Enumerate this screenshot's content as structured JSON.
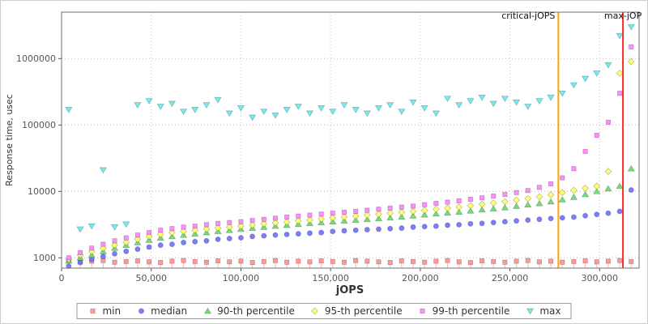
{
  "chart_data": {
    "type": "scatter",
    "title": "",
    "xlabel": "jOPS",
    "ylabel": "Response time, usec",
    "legend_position": "bottom",
    "grid": true,
    "x_axis": {
      "min": 0,
      "max": 322000,
      "ticks": [
        0,
        50000,
        100000,
        150000,
        200000,
        250000,
        300000
      ],
      "tick_labels": [
        "0",
        "50,000",
        "100,000",
        "150,000",
        "200,000",
        "250,000",
        "300,000"
      ]
    },
    "y_axis": {
      "scale": "log",
      "min": 700,
      "max": 5000000,
      "ticks": [
        1000,
        10000,
        100000,
        1000000
      ],
      "tick_labels": [
        "1000",
        "10000",
        "100000",
        "1000000"
      ]
    },
    "x": [
      4000,
      10400,
      16800,
      23200,
      29600,
      36000,
      42400,
      48800,
      55200,
      61600,
      68000,
      74400,
      80800,
      87200,
      93600,
      100000,
      106400,
      112800,
      119200,
      125600,
      132000,
      138400,
      144800,
      151200,
      157600,
      164000,
      170400,
      176800,
      183200,
      189600,
      196000,
      202400,
      208800,
      215200,
      221600,
      228000,
      234400,
      240800,
      247200,
      253600,
      260000,
      266400,
      272800,
      279200,
      285600,
      292000,
      298400,
      304800,
      311200,
      317600
    ],
    "series": [
      {
        "name": "min",
        "marker": "square",
        "color": "#ff8a8a",
        "values": [
          900,
          870,
          890,
          910,
          860,
          880,
          900,
          870,
          850,
          890,
          910,
          880,
          860,
          900,
          870,
          890,
          850,
          880,
          910,
          860,
          890,
          870,
          900,
          880,
          860,
          910,
          890,
          870,
          850,
          900,
          880,
          860,
          890,
          910,
          870,
          850,
          900,
          880,
          860,
          890,
          910,
          870,
          890,
          860,
          880,
          900,
          870,
          890,
          910,
          880
        ]
      },
      {
        "name": "median",
        "marker": "circle",
        "color": "#6a6aff",
        "values": [
          750,
          850,
          950,
          1050,
          1150,
          1250,
          1350,
          1450,
          1550,
          1600,
          1700,
          1750,
          1800,
          1900,
          1950,
          2000,
          2100,
          2150,
          2200,
          2250,
          2300,
          2350,
          2400,
          2500,
          2550,
          2600,
          2650,
          2700,
          2750,
          2800,
          2900,
          2950,
          3000,
          3100,
          3150,
          3250,
          3300,
          3400,
          3500,
          3600,
          3700,
          3800,
          3900,
          4000,
          4100,
          4300,
          4500,
          4700,
          5000,
          10500
        ]
      },
      {
        "name": "90-th percentile",
        "marker": "triangle-up",
        "color": "#63d963",
        "values": [
          900,
          1000,
          1100,
          1250,
          1400,
          1550,
          1700,
          1850,
          2000,
          2100,
          2200,
          2300,
          2400,
          2500,
          2600,
          2700,
          2800,
          2900,
          3000,
          3100,
          3200,
          3300,
          3400,
          3500,
          3600,
          3700,
          3800,
          3900,
          4000,
          4150,
          4300,
          4450,
          4600,
          4750,
          4900,
          5100,
          5300,
          5500,
          5700,
          6000,
          6300,
          6600,
          7000,
          7500,
          8200,
          9000,
          10000,
          11000,
          12000,
          22000
        ]
      },
      {
        "name": "95-th percentile",
        "marker": "diamond",
        "color": "#ffff5e",
        "values": [
          950,
          1100,
          1250,
          1400,
          1550,
          1700,
          1900,
          2100,
          2250,
          2400,
          2500,
          2600,
          2700,
          2800,
          2900,
          3000,
          3100,
          3250,
          3350,
          3450,
          3600,
          3700,
          3850,
          4000,
          4100,
          4250,
          4400,
          4550,
          4700,
          4850,
          5000,
          5200,
          5400,
          5600,
          5800,
          6100,
          6400,
          6700,
          7000,
          7400,
          7800,
          8300,
          8900,
          9600,
          10400,
          11200,
          12000,
          20000,
          600000,
          900000
        ]
      },
      {
        "name": "99-th percentile",
        "marker": "square",
        "color": "#ff7dff",
        "values": [
          1000,
          1200,
          1400,
          1600,
          1800,
          2000,
          2200,
          2400,
          2600,
          2750,
          2900,
          3000,
          3150,
          3300,
          3400,
          3500,
          3650,
          3800,
          3950,
          4100,
          4250,
          4400,
          4550,
          4700,
          4850,
          5000,
          5200,
          5400,
          5600,
          5800,
          6000,
          6300,
          6600,
          6900,
          7200,
          7600,
          8000,
          8500,
          9000,
          9600,
          10300,
          11500,
          13000,
          16000,
          22000,
          40000,
          70000,
          110000,
          300000,
          1500000
        ]
      },
      {
        "name": "max",
        "marker": "triangle-down",
        "color": "#5fe9e9",
        "values": [
          170000,
          2700,
          3000,
          21000,
          2900,
          3200,
          200000,
          230000,
          190000,
          210000,
          160000,
          170000,
          200000,
          240000,
          150000,
          180000,
          130000,
          160000,
          140000,
          170000,
          190000,
          150000,
          180000,
          160000,
          200000,
          170000,
          150000,
          180000,
          200000,
          160000,
          220000,
          180000,
          150000,
          250000,
          200000,
          230000,
          260000,
          210000,
          250000,
          220000,
          190000,
          230000,
          260000,
          300000,
          400000,
          500000,
          600000,
          800000,
          2200000,
          3000000
        ]
      }
    ],
    "annotations": [
      {
        "label": "critical-jOPS",
        "x": 277000,
        "color": "#ffa500",
        "label_align": "end"
      },
      {
        "label": "max-jOP",
        "x": 313000,
        "color": "#ff2a2a",
        "label_align": "middle"
      }
    ]
  }
}
